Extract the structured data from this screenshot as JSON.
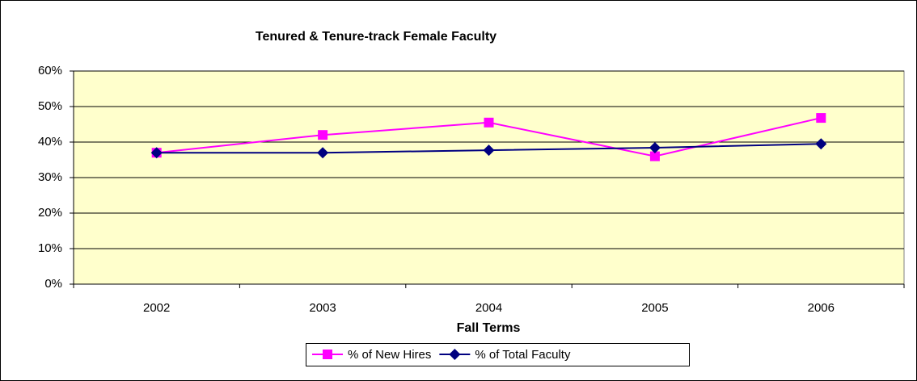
{
  "chart_data": {
    "type": "line",
    "title": "Tenured & Tenure-track Female Faculty",
    "x_label": "Fall Terms",
    "categories": [
      "2002",
      "2003",
      "2004",
      "2005",
      "2006"
    ],
    "series": [
      {
        "name": "% of New Hires",
        "color": "#ff00ff",
        "marker": "square",
        "values": [
          37,
          42,
          45.5,
          36,
          46.8
        ]
      },
      {
        "name": "% of Total Faculty",
        "color": "#000080",
        "marker": "diamond",
        "values": [
          37,
          37,
          37.7,
          38.4,
          39.5
        ]
      }
    ],
    "ylim": [
      0,
      60
    ],
    "yticks": [
      {
        "value": 0,
        "label": "0%"
      },
      {
        "value": 10,
        "label": "10%"
      },
      {
        "value": 20,
        "label": "20%"
      },
      {
        "value": 30,
        "label": "30%"
      },
      {
        "value": 40,
        "label": "40%"
      },
      {
        "value": 50,
        "label": "50%"
      },
      {
        "value": 60,
        "label": "60%"
      }
    ],
    "grid": true,
    "legend": "bottom",
    "plot_background": "#ffffcc"
  }
}
